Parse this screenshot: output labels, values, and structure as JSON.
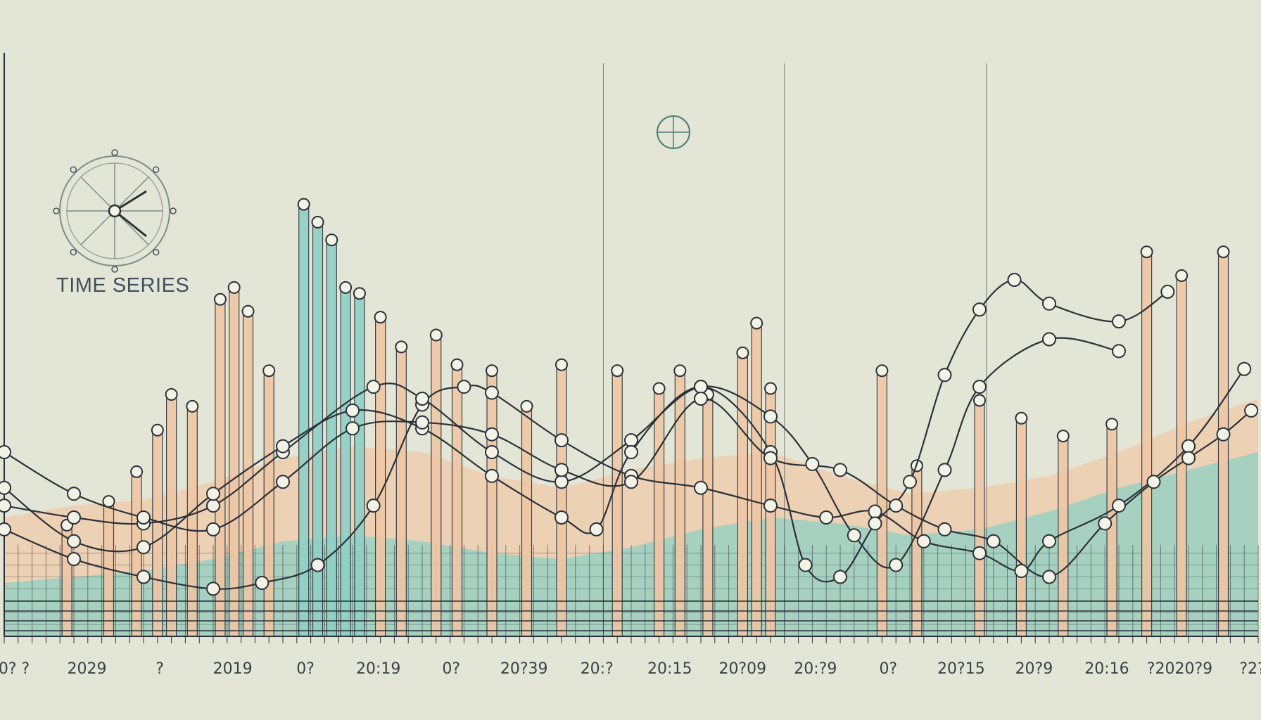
{
  "logo": {
    "label": "TIME SERIES",
    "icon": "clock-compass-icon"
  },
  "colors": {
    "background": "#e3e6d6",
    "peach": "#efc7a6",
    "teal": "#8fd0c6",
    "teal_dark": "#6bb3a9",
    "line": "#2b3138"
  },
  "chart_data": {
    "type": "bar",
    "title": "",
    "xlabel": "",
    "ylabel": "",
    "ylim": [
      0,
      100
    ],
    "grid": true,
    "legend": "none",
    "x_tick_labels": [
      "0? ?",
      "2029",
      "?",
      "2019",
      "0?",
      "20:19",
      "0?",
      "20?39",
      "20:?",
      "20:15",
      "20?09",
      "20:?9",
      "0?",
      "20?15",
      "20?9",
      "20:16",
      "?2020?9",
      "?2?"
    ],
    "bars": [
      {
        "x": 9,
        "value": 18,
        "color": "peach"
      },
      {
        "x": 15,
        "value": 22,
        "color": "peach"
      },
      {
        "x": 19,
        "value": 27,
        "color": "peach"
      },
      {
        "x": 22,
        "value": 34,
        "color": "peach"
      },
      {
        "x": 24,
        "value": 40,
        "color": "peach"
      },
      {
        "x": 27,
        "value": 38,
        "color": "peach"
      },
      {
        "x": 31,
        "value": 56,
        "color": "peach"
      },
      {
        "x": 33,
        "value": 58,
        "color": "peach"
      },
      {
        "x": 35,
        "value": 54,
        "color": "peach"
      },
      {
        "x": 38,
        "value": 44,
        "color": "peach"
      },
      {
        "x": 43,
        "value": 72,
        "color": "teal"
      },
      {
        "x": 45,
        "value": 69,
        "color": "teal"
      },
      {
        "x": 47,
        "value": 66,
        "color": "teal"
      },
      {
        "x": 49,
        "value": 58,
        "color": "teal"
      },
      {
        "x": 51,
        "value": 57,
        "color": "teal"
      },
      {
        "x": 54,
        "value": 53,
        "color": "peach"
      },
      {
        "x": 57,
        "value": 48,
        "color": "peach"
      },
      {
        "x": 62,
        "value": 50,
        "color": "peach"
      },
      {
        "x": 65,
        "value": 45,
        "color": "peach"
      },
      {
        "x": 70,
        "value": 44,
        "color": "peach"
      },
      {
        "x": 75,
        "value": 38,
        "color": "peach"
      },
      {
        "x": 80,
        "value": 45,
        "color": "peach"
      },
      {
        "x": 88,
        "value": 44,
        "color": "peach"
      },
      {
        "x": 94,
        "value": 41,
        "color": "peach"
      },
      {
        "x": 97,
        "value": 44,
        "color": "peach"
      },
      {
        "x": 101,
        "value": 40,
        "color": "peach"
      },
      {
        "x": 106,
        "value": 47,
        "color": "peach"
      },
      {
        "x": 108,
        "value": 52,
        "color": "peach"
      },
      {
        "x": 110,
        "value": 41,
        "color": "peach"
      },
      {
        "x": 126,
        "value": 44,
        "color": "peach"
      },
      {
        "x": 131,
        "value": 28,
        "color": "peach"
      },
      {
        "x": 140,
        "value": 39,
        "color": "peach"
      },
      {
        "x": 146,
        "value": 36,
        "color": "peach"
      },
      {
        "x": 152,
        "value": 33,
        "color": "peach"
      },
      {
        "x": 159,
        "value": 35,
        "color": "peach"
      },
      {
        "x": 164,
        "value": 64,
        "color": "peach"
      },
      {
        "x": 169,
        "value": 60,
        "color": "peach"
      },
      {
        "x": 175,
        "value": 64,
        "color": "peach"
      }
    ],
    "series": [
      {
        "x": [
          0,
          10,
          20,
          30,
          37,
          45,
          53,
          60,
          66,
          70,
          80,
          90,
          100,
          110,
          118,
          125,
          132,
          140,
          146,
          150,
          160,
          170,
          178
        ],
        "y": [
          18,
          13,
          10,
          8,
          9,
          12,
          22,
          39,
          42,
          41,
          33,
          27,
          25,
          22,
          20,
          21,
          16,
          14,
          11,
          16,
          22,
          32,
          45
        ]
      },
      {
        "x": [
          0,
          10,
          20,
          30,
          40,
          53,
          60,
          70,
          80,
          90,
          100,
          110,
          116,
          122,
          128,
          135,
          140,
          150,
          160
        ],
        "y": [
          22,
          20,
          19,
          22,
          31,
          42,
          40,
          31,
          26,
          33,
          42,
          37,
          29,
          17,
          12,
          28,
          42,
          50,
          48
        ]
      },
      {
        "x": [
          0,
          10,
          20,
          30,
          40,
          50,
          60,
          70,
          80,
          85,
          90,
          100,
          110,
          115,
          120,
          125,
          130,
          135,
          140,
          145,
          150,
          160,
          167
        ],
        "y": [
          25,
          16,
          15,
          24,
          32,
          38,
          35,
          27,
          20,
          18,
          31,
          42,
          31,
          12,
          10,
          19,
          26,
          44,
          55,
          60,
          56,
          53,
          58
        ]
      },
      {
        "x": [
          0,
          10,
          20,
          30,
          40,
          50,
          60,
          70,
          80,
          90,
          100,
          110,
          120,
          128,
          135,
          142,
          150,
          158,
          165,
          170,
          175,
          179
        ],
        "y": [
          31,
          24,
          20,
          18,
          26,
          35,
          36,
          34,
          28,
          26,
          40,
          30,
          28,
          22,
          18,
          16,
          10,
          19,
          26,
          30,
          34,
          38
        ]
      }
    ],
    "bands": [
      {
        "color": "peach",
        "values": [
          20,
          22,
          23,
          26,
          30,
          32,
          31,
          27,
          25,
          28,
          30,
          31,
          27,
          24,
          25,
          27,
          31,
          36,
          40
        ]
      },
      {
        "color": "teal",
        "values": [
          9,
          10,
          11,
          13,
          16,
          17,
          16,
          14,
          13,
          15,
          18,
          20,
          19,
          17,
          18,
          21,
          25,
          28,
          31
        ]
      }
    ]
  }
}
